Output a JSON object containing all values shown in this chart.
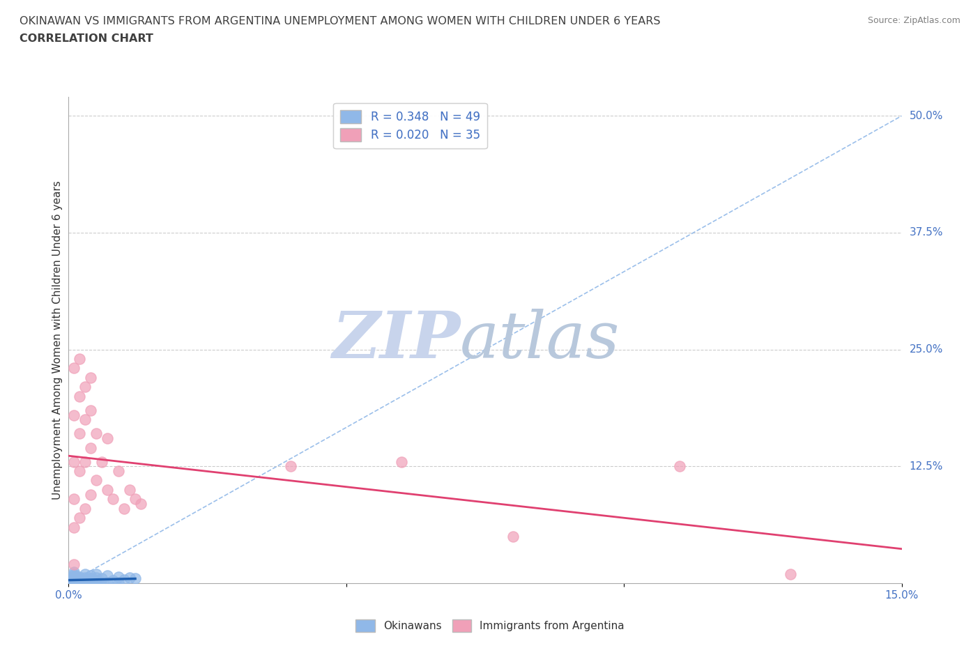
{
  "title_line1": "OKINAWAN VS IMMIGRANTS FROM ARGENTINA UNEMPLOYMENT AMONG WOMEN WITH CHILDREN UNDER 6 YEARS",
  "title_line2": "CORRELATION CHART",
  "source": "Source: ZipAtlas.com",
  "ylabel_label": "Unemployment Among Women with Children Under 6 years",
  "right_ytick_labels": [
    "50.0%",
    "37.5%",
    "25.0%",
    "12.5%"
  ],
  "right_ytick_values": [
    0.5,
    0.375,
    0.25,
    0.125
  ],
  "xlim": [
    0.0,
    0.15
  ],
  "ylim": [
    0.0,
    0.52
  ],
  "okinawan_R": 0.348,
  "okinawan_N": 49,
  "argentina_R": 0.02,
  "argentina_N": 35,
  "okinawan_color": "#90b8e8",
  "argentina_color": "#f0a0b8",
  "okinawan_line_color": "#2060b0",
  "argentina_line_color": "#e04070",
  "diagonal_line_color": "#90b8e8",
  "watermark_zip_color": "#c8d4ec",
  "watermark_atlas_color": "#b8c8dc",
  "legend_label_color": "#4472c4",
  "axis_label_color": "#4472c4",
  "title_color": "#404040",
  "source_color": "#808080",
  "okinawan_x": [
    0.001,
    0.001,
    0.001,
    0.001,
    0.001,
    0.001,
    0.001,
    0.001,
    0.001,
    0.001,
    0.001,
    0.001,
    0.001,
    0.001,
    0.001,
    0.001,
    0.001,
    0.001,
    0.001,
    0.001,
    0.002,
    0.002,
    0.002,
    0.002,
    0.002,
    0.002,
    0.003,
    0.003,
    0.003,
    0.003,
    0.003,
    0.004,
    0.004,
    0.004,
    0.004,
    0.005,
    0.005,
    0.005,
    0.005,
    0.006,
    0.006,
    0.007,
    0.007,
    0.008,
    0.009,
    0.009,
    0.01,
    0.011,
    0.012
  ],
  "okinawan_y": [
    0.0,
    0.0,
    0.0,
    0.0,
    0.0,
    0.0,
    0.0,
    0.001,
    0.001,
    0.002,
    0.003,
    0.004,
    0.004,
    0.005,
    0.005,
    0.006,
    0.007,
    0.008,
    0.01,
    0.012,
    0.0,
    0.001,
    0.002,
    0.003,
    0.005,
    0.007,
    0.0,
    0.002,
    0.004,
    0.006,
    0.01,
    0.0,
    0.002,
    0.005,
    0.008,
    0.0,
    0.003,
    0.006,
    0.01,
    0.0,
    0.005,
    0.001,
    0.008,
    0.003,
    0.001,
    0.007,
    0.004,
    0.006,
    0.005
  ],
  "argentina_x": [
    0.001,
    0.001,
    0.001,
    0.001,
    0.001,
    0.001,
    0.002,
    0.002,
    0.002,
    0.002,
    0.002,
    0.003,
    0.003,
    0.003,
    0.003,
    0.004,
    0.004,
    0.004,
    0.004,
    0.005,
    0.005,
    0.006,
    0.007,
    0.007,
    0.008,
    0.009,
    0.01,
    0.011,
    0.012,
    0.013,
    0.04,
    0.06,
    0.08,
    0.11,
    0.13
  ],
  "argentina_y": [
    0.02,
    0.06,
    0.09,
    0.13,
    0.18,
    0.23,
    0.07,
    0.12,
    0.16,
    0.2,
    0.24,
    0.08,
    0.13,
    0.175,
    0.21,
    0.095,
    0.145,
    0.185,
    0.22,
    0.11,
    0.16,
    0.13,
    0.1,
    0.155,
    0.09,
    0.12,
    0.08,
    0.1,
    0.09,
    0.085,
    0.125,
    0.13,
    0.05,
    0.125,
    0.01
  ]
}
